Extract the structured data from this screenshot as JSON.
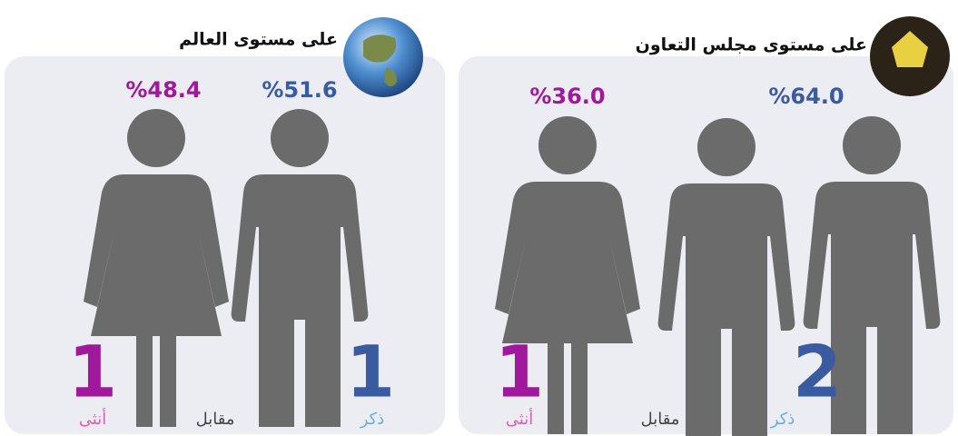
{
  "panels": [
    {
      "title": "على مستوى العالم",
      "female_percent": "%48.4",
      "male_percent": "%51.6",
      "female_count": "1",
      "male_count": "1",
      "female_label": "أنثى",
      "versus": "مقابل",
      "male_label": "ذكر"
    },
    {
      "title": "على مستوى مجلس التعاون",
      "female_percent": "%36.0",
      "male_percent": "%64.0",
      "female_count": "1",
      "male_count": "2",
      "female_label": "أنثى",
      "versus": "مقابل",
      "male_label": "ذكر"
    }
  ]
}
